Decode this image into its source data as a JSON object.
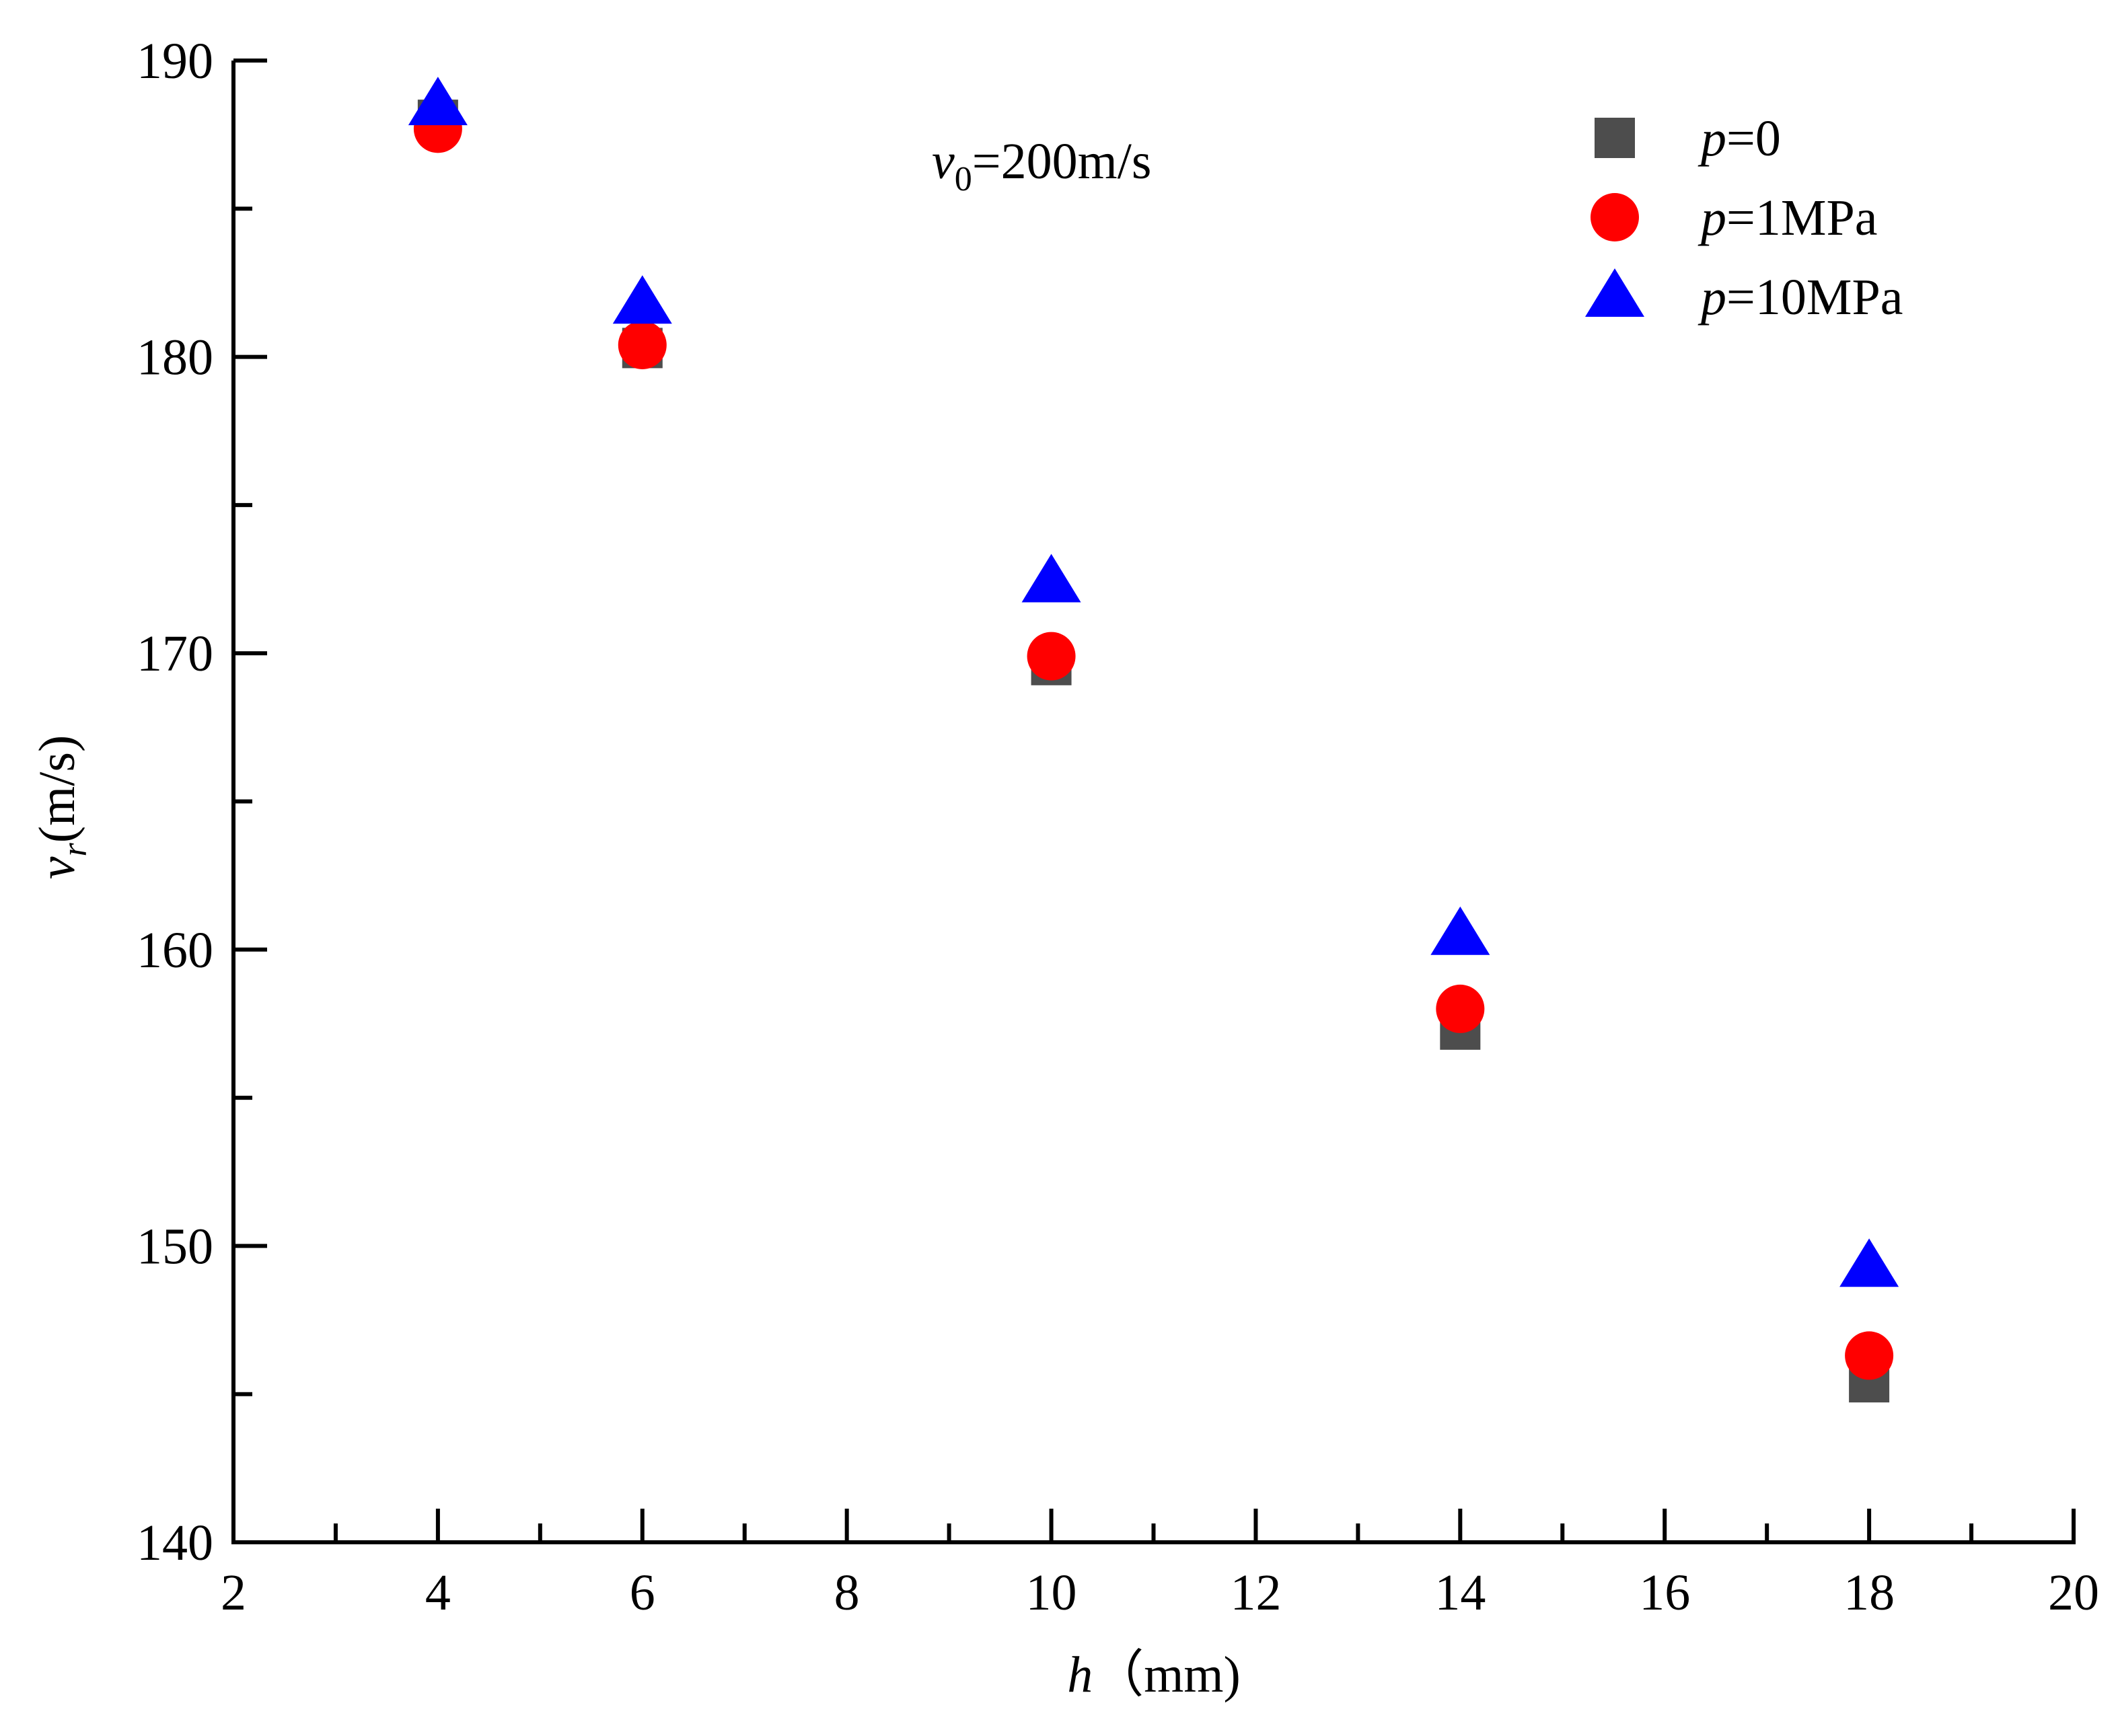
{
  "chart_data": {
    "type": "scatter",
    "title": "",
    "annotation": {
      "var": "v",
      "sub": "0",
      "text": "=200m/s"
    },
    "xlabel": {
      "var": "h",
      "unit": "（mm)"
    },
    "ylabel": {
      "var": "v",
      "sub": "r",
      "unit": "(m/s)"
    },
    "xlim": [
      2,
      20
    ],
    "ylim": [
      140,
      190
    ],
    "xticks": [
      2,
      4,
      6,
      8,
      10,
      12,
      14,
      16,
      18,
      20
    ],
    "yticks": [
      140,
      150,
      160,
      170,
      180,
      190
    ],
    "grid": false,
    "legend_position": "top-right",
    "x": [
      4,
      6,
      10,
      14,
      18
    ],
    "series": [
      {
        "name_var": "p",
        "name_rest": "=0",
        "marker": "square",
        "color": "#4d4d4d",
        "values": [
          188.0,
          180.3,
          169.6,
          157.3,
          145.4
        ]
      },
      {
        "name_var": "p",
        "name_rest": "=1MPa",
        "marker": "circle",
        "color": "#ff0000",
        "values": [
          187.7,
          180.4,
          169.9,
          158.0,
          146.3
        ]
      },
      {
        "name_var": "p",
        "name_rest": "=10MPa",
        "marker": "triangle",
        "color": "#0000ff",
        "values": [
          188.5,
          181.8,
          172.4,
          160.5,
          149.3
        ]
      }
    ]
  }
}
